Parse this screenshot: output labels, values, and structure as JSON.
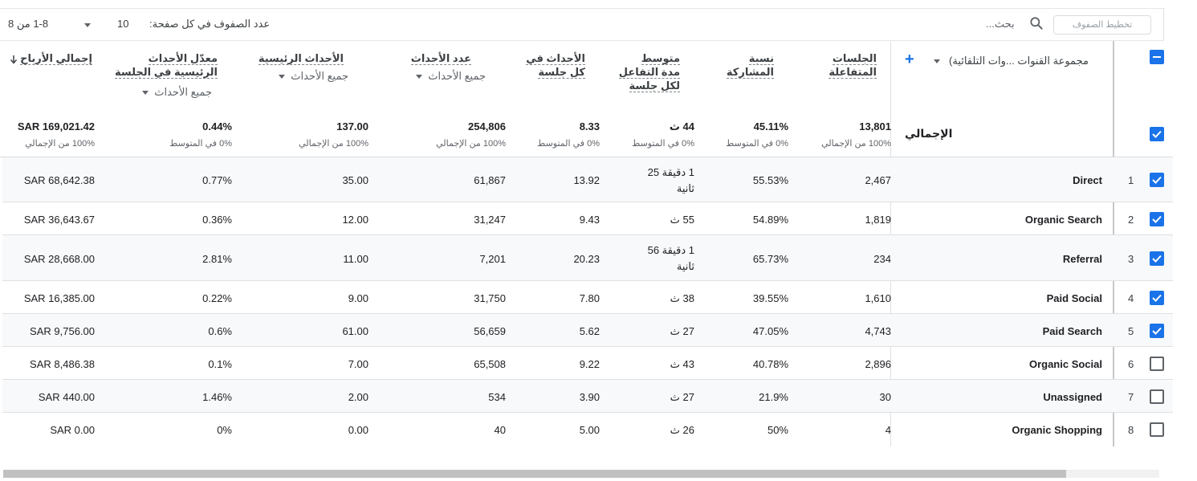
{
  "toolbar": {
    "pager_range": "1-8 من 8",
    "rows_per_page_label": "عدد الصفوف في كل صفحة:",
    "rows_per_page_value": "10",
    "search_placeholder": "بحث...",
    "filter_rows_placeholder": "تخطيط الصفوف"
  },
  "dimension": {
    "header": "مجموعة القنوات ...وات التلقائية)",
    "total_label": "الإجمالي"
  },
  "columns": [
    {
      "key": "engaged_sessions",
      "line1": "الجلسات",
      "line2": "المتفاعلة"
    },
    {
      "key": "engagement_rate",
      "line1": "نسبة",
      "line2": "المشاركة"
    },
    {
      "key": "avg_engagement_time",
      "line1": "متوسط",
      "line2": "مدة التفاعل",
      "line3": "لكل جلسة"
    },
    {
      "key": "events_per_session",
      "line1": "الأحداث في",
      "line2": "كل جلسة"
    },
    {
      "key": "event_count",
      "line1": "عدد الأحداث",
      "sub": "جميع الأحداث"
    },
    {
      "key": "key_events",
      "line1": "الأحداث الرئيسية",
      "sub": "جميع الأحداث"
    },
    {
      "key": "key_event_rate",
      "line1": "معدّل الأحداث",
      "line2": "الرئيسية في الجلسة",
      "sub": "جميع الأحداث"
    },
    {
      "key": "total_revenue",
      "line1": "إجمالي الأرباح",
      "sort_icon": "arrow-down-icon"
    }
  ],
  "totals": {
    "values": [
      "13,801",
      "45.11%",
      "44 ث",
      "8.33",
      "254,806",
      "137.00",
      "0.44%",
      "SAR 169,021.42"
    ],
    "subs": [
      "100% من الإجمالي",
      "0% في المتوسط",
      "0% في المتوسط",
      "0% في المتوسط",
      "100% من الإجمالي",
      "100% من الإجمالي",
      "0% في المتوسط",
      "100% من الإجمالي"
    ]
  },
  "rows": [
    {
      "num": "1",
      "name": "Direct",
      "checked": true,
      "vals": [
        "2,467",
        "55.53%",
        "1 دقيقة 25",
        "13.92",
        "61,867",
        "35.00",
        "0.77%",
        "SAR 68,642.38"
      ],
      "time_line2": "ثانية"
    },
    {
      "num": "2",
      "name": "Organic Search",
      "checked": true,
      "vals": [
        "1,819",
        "54.89%",
        "55 ث",
        "9.43",
        "31,247",
        "12.00",
        "0.36%",
        "SAR 36,643.67"
      ]
    },
    {
      "num": "3",
      "name": "Referral",
      "checked": true,
      "vals": [
        "234",
        "65.73%",
        "1 دقيقة 56",
        "20.23",
        "7,201",
        "11.00",
        "2.81%",
        "SAR 28,668.00"
      ],
      "time_line2": "ثانية"
    },
    {
      "num": "4",
      "name": "Paid Social",
      "checked": true,
      "vals": [
        "1,610",
        "39.55%",
        "38 ث",
        "7.80",
        "31,750",
        "9.00",
        "0.22%",
        "SAR 16,385.00"
      ]
    },
    {
      "num": "5",
      "name": "Paid Search",
      "checked": true,
      "vals": [
        "4,743",
        "47.05%",
        "27 ث",
        "5.62",
        "56,659",
        "61.00",
        "0.6%",
        "SAR 9,756.00"
      ]
    },
    {
      "num": "6",
      "name": "Organic Social",
      "checked": false,
      "vals": [
        "2,896",
        "40.78%",
        "43 ث",
        "9.22",
        "65,508",
        "7.00",
        "0.1%",
        "SAR 8,486.38"
      ]
    },
    {
      "num": "7",
      "name": "Unassigned",
      "checked": false,
      "vals": [
        "30",
        "21.9%",
        "27 ث",
        "3.90",
        "534",
        "2.00",
        "1.46%",
        "SAR 440.00"
      ]
    },
    {
      "num": "8",
      "name": "Organic Shopping",
      "checked": false,
      "vals": [
        "4",
        "50%",
        "26 ث",
        "5.00",
        "40",
        "0.00",
        "0%",
        "SAR 0.00"
      ]
    }
  ],
  "colors": {
    "accent": "#1a73e8",
    "row_shade": "#f8f9fa"
  }
}
